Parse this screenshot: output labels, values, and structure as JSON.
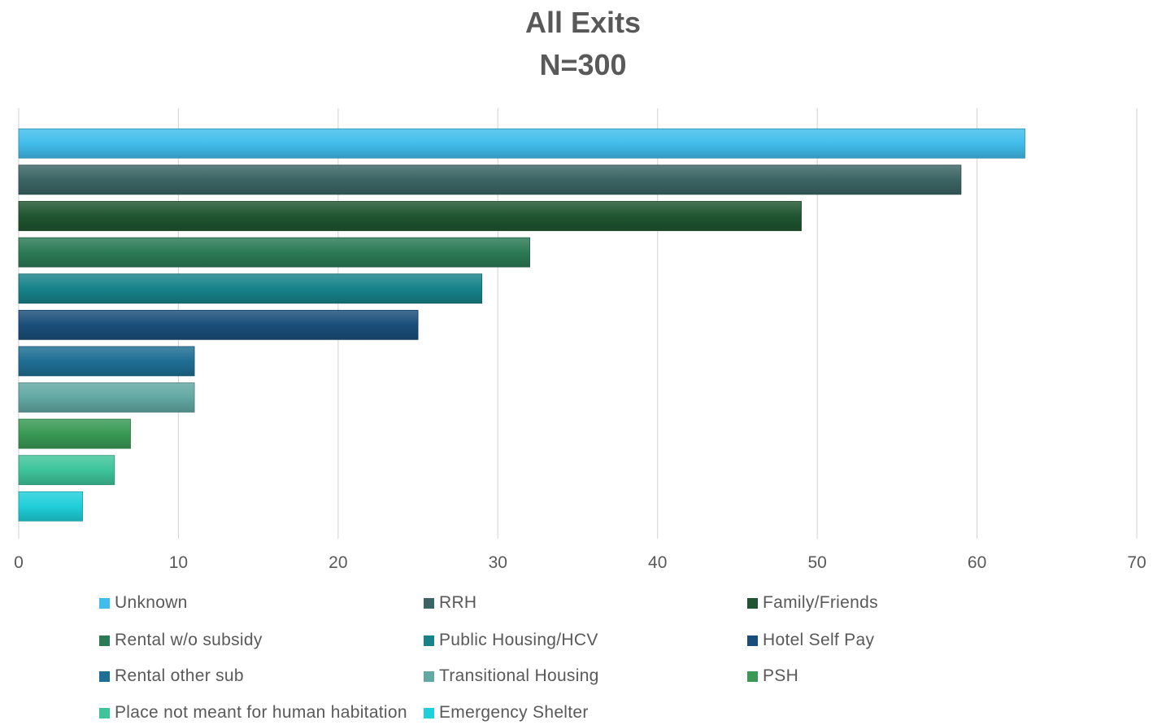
{
  "chart_data": {
    "type": "bar",
    "orientation": "horizontal",
    "title": "All Exits",
    "subtitle": "N=300",
    "categories": [
      "Unknown",
      "RRH",
      "Family/Friends",
      "Rental w/o subsidy",
      "Public Housing/HCV",
      "Hotel Self Pay",
      "Rental other sub",
      "Transitional Housing",
      "PSH",
      "Place not meant for human habitation",
      "Emergency Shelter"
    ],
    "values": [
      63,
      59,
      49,
      32,
      29,
      25,
      11,
      11,
      7,
      6,
      4
    ],
    "colors": [
      "#41BDEB",
      "#3B6464",
      "#1F5530",
      "#2B7A55",
      "#17828A",
      "#1A4E7A",
      "#1F6E94",
      "#62A8A3",
      "#3A9A55",
      "#3EC49A",
      "#1FCFD9"
    ],
    "xlim": [
      0,
      70
    ],
    "xticks": [
      0,
      10,
      20,
      30,
      40,
      50,
      60,
      70
    ],
    "xlabel": "",
    "ylabel": "",
    "grid": "vertical",
    "legend": "bottom"
  }
}
